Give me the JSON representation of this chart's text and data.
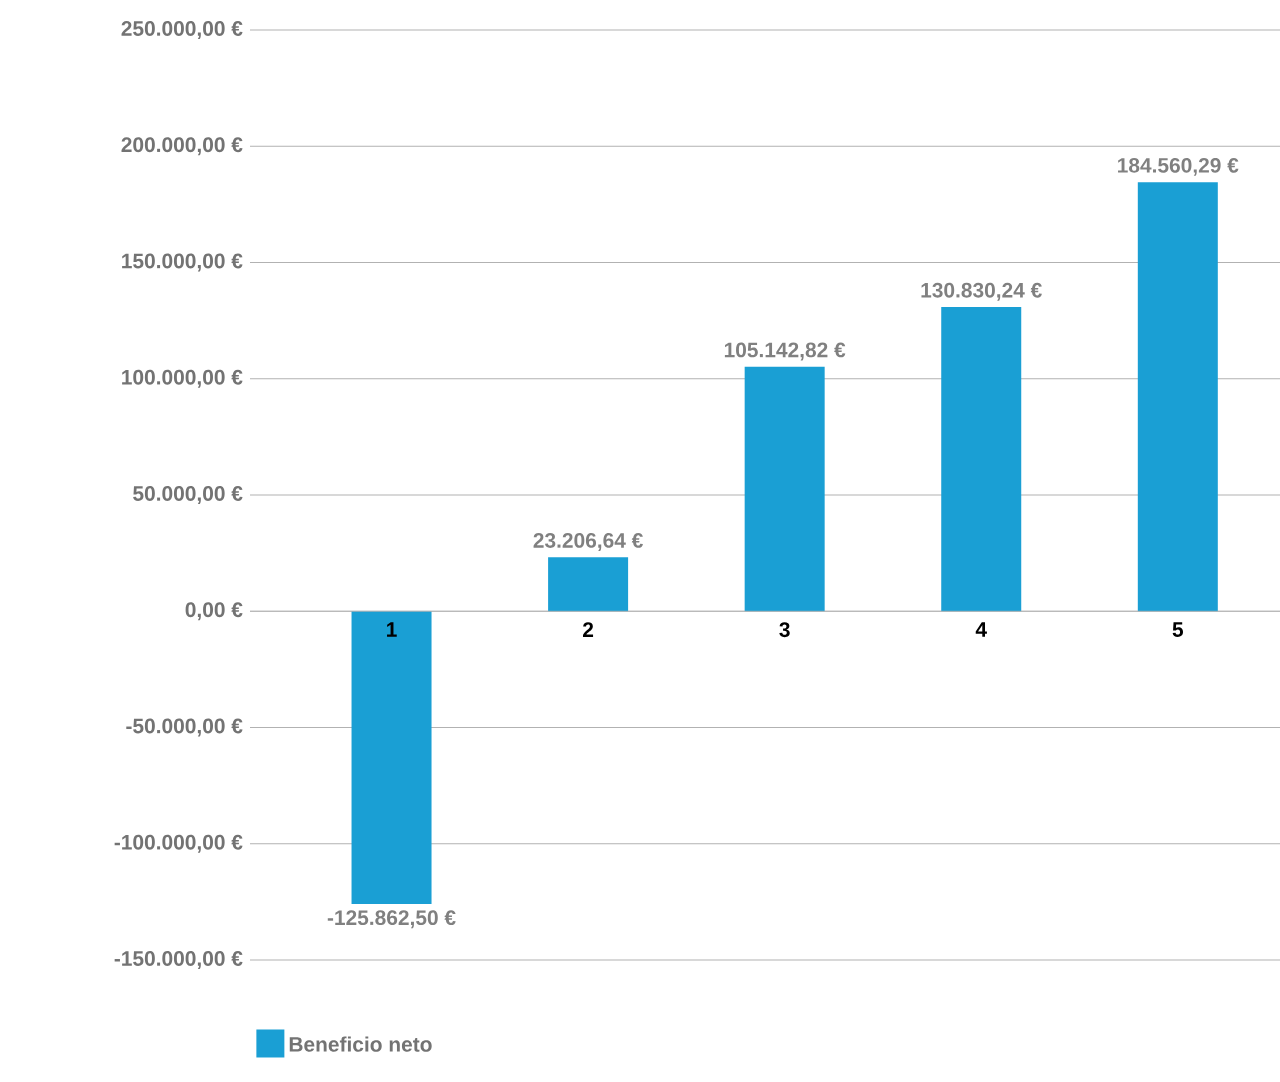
{
  "chart_data": {
    "type": "bar",
    "categories": [
      "1",
      "2",
      "3",
      "4",
      "5"
    ],
    "series": [
      {
        "name": "Beneficio neto",
        "color": "#1a9fd4",
        "values": [
          -125862.5,
          23206.64,
          105142.82,
          130830.24,
          184560.29
        ],
        "value_labels": [
          "-125.862,50 €",
          "23.206,64 €",
          "105.142,82 €",
          "130.830,24 €",
          "184.560,29 €"
        ]
      }
    ],
    "ylim": [
      -150000,
      250000
    ],
    "yticks": [
      {
        "value": -150000,
        "label": "-150.000,00 €"
      },
      {
        "value": -100000,
        "label": "-100.000,00 €"
      },
      {
        "value": -50000,
        "label": "-50.000,00 €"
      },
      {
        "value": 0,
        "label": "0,00 €"
      },
      {
        "value": 50000,
        "label": "50.000,00 €"
      },
      {
        "value": 100000,
        "label": "100.000,00 €"
      },
      {
        "value": 150000,
        "label": "150.000,00 €"
      },
      {
        "value": 200000,
        "label": "200.000,00 €"
      },
      {
        "value": 250000,
        "label": "250.000,00 €"
      }
    ],
    "grid": "y",
    "legend": "bottom left"
  }
}
